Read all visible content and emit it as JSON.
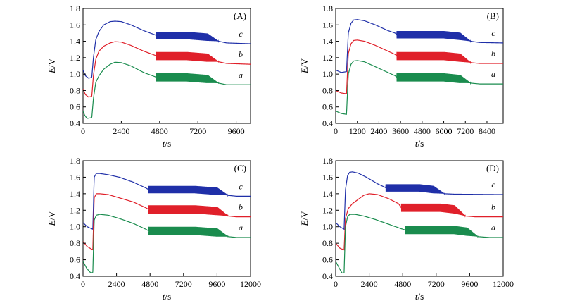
{
  "chart_data": [
    {
      "type": "line",
      "panel_label": "(A)",
      "xlabel_italic": "t",
      "xlabel_unit": "/s",
      "ylabel_italic": "E",
      "ylabel_unit": "/V",
      "xlim": [
        0,
        10500
      ],
      "ylim": [
        0.4,
        1.8
      ],
      "xticks": [
        0,
        2400,
        4800,
        7200,
        9600
      ],
      "yticks": [
        "0.4",
        "0.6",
        "0.8",
        "1.0",
        "1.2",
        "1.4",
        "1.6",
        "1.8"
      ],
      "series": [
        {
          "name": "c",
          "color": "#1f2fa8",
          "osc": [
            4600,
            8500
          ],
          "osc_end_taper": 7800,
          "amp": 0.045,
          "points": [
            [
              0,
              1.05
            ],
            [
              150,
              0.98
            ],
            [
              350,
              0.95
            ],
            [
              550,
              0.96
            ],
            [
              650,
              1.2
            ],
            [
              800,
              1.42
            ],
            [
              1000,
              1.52
            ],
            [
              1300,
              1.6
            ],
            [
              1700,
              1.64
            ],
            [
              2000,
              1.645
            ],
            [
              2400,
              1.64
            ],
            [
              3000,
              1.6
            ],
            [
              3800,
              1.53
            ],
            [
              4500,
              1.48
            ],
            [
              4600,
              1.47
            ],
            [
              6500,
              1.47
            ],
            [
              7800,
              1.45
            ],
            [
              8500,
              1.4
            ],
            [
              9000,
              1.38
            ],
            [
              10500,
              1.37
            ]
          ]
        },
        {
          "name": "b",
          "color": "#e0202a",
          "osc": [
            4600,
            8500
          ],
          "osc_end_taper": 7800,
          "amp": 0.05,
          "points": [
            [
              0,
              0.82
            ],
            [
              150,
              0.75
            ],
            [
              350,
              0.72
            ],
            [
              550,
              0.73
            ],
            [
              650,
              0.98
            ],
            [
              800,
              1.18
            ],
            [
              1000,
              1.28
            ],
            [
              1300,
              1.34
            ],
            [
              1700,
              1.38
            ],
            [
              2000,
              1.395
            ],
            [
              2400,
              1.39
            ],
            [
              3000,
              1.35
            ],
            [
              3800,
              1.28
            ],
            [
              4500,
              1.23
            ],
            [
              4600,
              1.22
            ],
            [
              6500,
              1.22
            ],
            [
              7800,
              1.2
            ],
            [
              8500,
              1.15
            ],
            [
              9000,
              1.13
            ],
            [
              10500,
              1.12
            ]
          ]
        },
        {
          "name": "a",
          "color": "#1a8c4e",
          "osc": [
            4600,
            8500
          ],
          "osc_end_taper": 7800,
          "amp": 0.05,
          "points": [
            [
              0,
              0.55
            ],
            [
              100,
              0.5
            ],
            [
              250,
              0.46
            ],
            [
              550,
              0.47
            ],
            [
              650,
              0.7
            ],
            [
              800,
              0.9
            ],
            [
              1000,
              0.98
            ],
            [
              1300,
              1.06
            ],
            [
              1700,
              1.12
            ],
            [
              2000,
              1.145
            ],
            [
              2400,
              1.14
            ],
            [
              3000,
              1.1
            ],
            [
              3800,
              1.02
            ],
            [
              4500,
              0.97
            ],
            [
              4600,
              0.96
            ],
            [
              6500,
              0.96
            ],
            [
              7800,
              0.94
            ],
            [
              8500,
              0.89
            ],
            [
              9000,
              0.87
            ],
            [
              10500,
              0.87
            ]
          ]
        }
      ]
    },
    {
      "type": "line",
      "panel_label": "(B)",
      "xlabel_italic": "t",
      "xlabel_unit": "/s",
      "ylabel_italic": "E",
      "ylabel_unit": "/V",
      "xlim": [
        0,
        9300
      ],
      "ylim": [
        0.4,
        1.8
      ],
      "xticks": [
        0,
        1200,
        2400,
        3600,
        4800,
        6000,
        7200,
        8400
      ],
      "yticks": [
        "0.4",
        "0.6",
        "0.8",
        "1.0",
        "1.2",
        "1.4",
        "1.6",
        "1.8"
      ],
      "series": [
        {
          "name": "c",
          "color": "#1f2fa8",
          "osc": [
            3400,
            7500
          ],
          "osc_end_taper": 6900,
          "amp": 0.045,
          "points": [
            [
              0,
              1.05
            ],
            [
              300,
              1.02
            ],
            [
              600,
              1.03
            ],
            [
              700,
              1.5
            ],
            [
              850,
              1.62
            ],
            [
              1000,
              1.66
            ],
            [
              1200,
              1.665
            ],
            [
              1600,
              1.65
            ],
            [
              2200,
              1.6
            ],
            [
              2900,
              1.53
            ],
            [
              3300,
              1.5
            ],
            [
              3400,
              1.48
            ],
            [
              6000,
              1.48
            ],
            [
              6900,
              1.46
            ],
            [
              7500,
              1.4
            ],
            [
              8000,
              1.385
            ],
            [
              9300,
              1.38
            ]
          ]
        },
        {
          "name": "b",
          "color": "#e0202a",
          "osc": [
            3400,
            7500
          ],
          "osc_end_taper": 6900,
          "amp": 0.05,
          "points": [
            [
              0,
              0.8
            ],
            [
              300,
              0.77
            ],
            [
              600,
              0.76
            ],
            [
              700,
              1.25
            ],
            [
              850,
              1.37
            ],
            [
              1000,
              1.41
            ],
            [
              1200,
              1.415
            ],
            [
              1600,
              1.4
            ],
            [
              2200,
              1.35
            ],
            [
              2900,
              1.28
            ],
            [
              3300,
              1.24
            ],
            [
              3400,
              1.22
            ],
            [
              6000,
              1.22
            ],
            [
              6900,
              1.2
            ],
            [
              7500,
              1.14
            ],
            [
              8000,
              1.13
            ],
            [
              9300,
              1.13
            ]
          ]
        },
        {
          "name": "a",
          "color": "#1a8c4e",
          "osc": [
            3400,
            7500
          ],
          "osc_end_taper": 6900,
          "amp": 0.05,
          "points": [
            [
              0,
              0.55
            ],
            [
              300,
              0.52
            ],
            [
              600,
              0.51
            ],
            [
              700,
              1.0
            ],
            [
              850,
              1.12
            ],
            [
              1000,
              1.16
            ],
            [
              1200,
              1.165
            ],
            [
              1600,
              1.15
            ],
            [
              2200,
              1.09
            ],
            [
              2900,
              1.02
            ],
            [
              3300,
              0.98
            ],
            [
              3400,
              0.96
            ],
            [
              6000,
              0.96
            ],
            [
              6900,
              0.94
            ],
            [
              7500,
              0.89
            ],
            [
              8000,
              0.88
            ],
            [
              9300,
              0.88
            ]
          ]
        }
      ]
    },
    {
      "type": "line",
      "panel_label": "(C)",
      "xlabel_italic": "t",
      "xlabel_unit": "/s",
      "ylabel_italic": "E",
      "ylabel_unit": "/V",
      "xlim": [
        0,
        12000
      ],
      "ylim": [
        0.4,
        1.8
      ],
      "xticks": [
        0,
        2400,
        4800,
        7200,
        9600,
        12000
      ],
      "yticks": [
        "0.4",
        "0.6",
        "0.8",
        "1.0",
        "1.2",
        "1.4",
        "1.6",
        "1.8"
      ],
      "series": [
        {
          "name": "c",
          "color": "#1f2fa8",
          "osc": [
            4700,
            10400
          ],
          "osc_end_taper": 9600,
          "amp": 0.045,
          "points": [
            [
              0,
              1.05
            ],
            [
              300,
              1.0
            ],
            [
              700,
              0.97
            ],
            [
              800,
              1.6
            ],
            [
              950,
              1.645
            ],
            [
              1200,
              1.645
            ],
            [
              1800,
              1.63
            ],
            [
              2600,
              1.6
            ],
            [
              3600,
              1.54
            ],
            [
              4500,
              1.47
            ],
            [
              4700,
              1.45
            ],
            [
              8000,
              1.45
            ],
            [
              9600,
              1.43
            ],
            [
              10400,
              1.38
            ],
            [
              11000,
              1.37
            ],
            [
              12000,
              1.37
            ]
          ]
        },
        {
          "name": "b",
          "color": "#e0202a",
          "osc": [
            4700,
            10400
          ],
          "osc_end_taper": 9600,
          "amp": 0.05,
          "points": [
            [
              0,
              0.82
            ],
            [
              300,
              0.76
            ],
            [
              700,
              0.72
            ],
            [
              800,
              1.35
            ],
            [
              950,
              1.4
            ],
            [
              1200,
              1.4
            ],
            [
              1800,
              1.39
            ],
            [
              2600,
              1.35
            ],
            [
              3600,
              1.3
            ],
            [
              4500,
              1.23
            ],
            [
              4700,
              1.21
            ],
            [
              8000,
              1.21
            ],
            [
              9600,
              1.19
            ],
            [
              10400,
              1.13
            ],
            [
              11000,
              1.12
            ],
            [
              12000,
              1.12
            ]
          ]
        },
        {
          "name": "a",
          "color": "#1a8c4e",
          "osc": [
            4700,
            10400
          ],
          "osc_end_taper": 9600,
          "amp": 0.05,
          "points": [
            [
              0,
              0.58
            ],
            [
              250,
              0.5
            ],
            [
              500,
              0.45
            ],
            [
              700,
              0.44
            ],
            [
              800,
              1.08
            ],
            [
              950,
              1.14
            ],
            [
              1200,
              1.15
            ],
            [
              1800,
              1.14
            ],
            [
              2600,
              1.1
            ],
            [
              3600,
              1.04
            ],
            [
              4500,
              0.97
            ],
            [
              4700,
              0.95
            ],
            [
              8000,
              0.95
            ],
            [
              9600,
              0.93
            ],
            [
              10400,
              0.88
            ],
            [
              11000,
              0.87
            ],
            [
              12000,
              0.87
            ]
          ]
        }
      ]
    },
    {
      "type": "line",
      "panel_label": "(D)",
      "xlabel_italic": "t",
      "xlabel_unit": "/s",
      "ylabel_italic": "E",
      "ylabel_unit": "/V",
      "xlim": [
        0,
        12000
      ],
      "ylim": [
        0.4,
        1.8
      ],
      "xticks": [
        0,
        2400,
        4800,
        7200,
        9600,
        12000
      ],
      "yticks": [
        "0.4",
        "0.6",
        "0.8",
        "1.0",
        "1.2",
        "1.4",
        "1.6",
        "1.8"
      ],
      "series": [
        {
          "name": "c",
          "color": "#1f2fa8",
          "osc": [
            3600,
            7800
          ],
          "osc_end_taper": 7000,
          "amp": 0.045,
          "points": [
            [
              0,
              1.05
            ],
            [
              300,
              1.0
            ],
            [
              600,
              0.97
            ],
            [
              700,
              1.45
            ],
            [
              850,
              1.62
            ],
            [
              1000,
              1.66
            ],
            [
              1200,
              1.665
            ],
            [
              1600,
              1.65
            ],
            [
              2200,
              1.6
            ],
            [
              3000,
              1.52
            ],
            [
              3500,
              1.48
            ],
            [
              3600,
              1.47
            ],
            [
              6000,
              1.47
            ],
            [
              7000,
              1.45
            ],
            [
              7800,
              1.4
            ],
            [
              8500,
              1.395
            ],
            [
              12000,
              1.39
            ]
          ]
        },
        {
          "name": "b",
          "color": "#e0202a",
          "osc": [
            4700,
            9300
          ],
          "osc_end_taper": 8500,
          "amp": 0.05,
          "points": [
            [
              0,
              0.8
            ],
            [
              300,
              0.74
            ],
            [
              600,
              0.72
            ],
            [
              700,
              1.1
            ],
            [
              900,
              1.22
            ],
            [
              1200,
              1.28
            ],
            [
              1600,
              1.33
            ],
            [
              2000,
              1.38
            ],
            [
              2400,
              1.4
            ],
            [
              3000,
              1.39
            ],
            [
              3800,
              1.34
            ],
            [
              4500,
              1.28
            ],
            [
              4700,
              1.23
            ],
            [
              7500,
              1.23
            ],
            [
              8500,
              1.21
            ],
            [
              9300,
              1.13
            ],
            [
              10000,
              1.12
            ],
            [
              12000,
              1.12
            ]
          ]
        },
        {
          "name": "a",
          "color": "#1a8c4e",
          "osc": [
            5000,
            10200
          ],
          "osc_end_taper": 9400,
          "amp": 0.05,
          "points": [
            [
              0,
              0.58
            ],
            [
              250,
              0.5
            ],
            [
              450,
              0.44
            ],
            [
              600,
              0.44
            ],
            [
              700,
              1.0
            ],
            [
              850,
              1.12
            ],
            [
              1000,
              1.15
            ],
            [
              1400,
              1.15
            ],
            [
              2000,
              1.13
            ],
            [
              2800,
              1.09
            ],
            [
              3800,
              1.03
            ],
            [
              4800,
              0.97
            ],
            [
              5000,
              0.96
            ],
            [
              8500,
              0.96
            ],
            [
              9400,
              0.94
            ],
            [
              10200,
              0.88
            ],
            [
              11000,
              0.87
            ],
            [
              12000,
              0.87
            ]
          ]
        }
      ]
    }
  ]
}
